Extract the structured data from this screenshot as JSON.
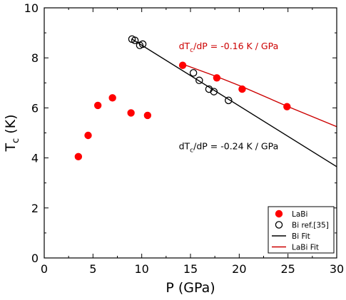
{
  "chart_data": {
    "type": "scatter",
    "xlabel": "P (GPa)",
    "ylabel_main": "T",
    "ylabel_sub": "c",
    "ylabel_unit": " (K)",
    "xlim": [
      0,
      30
    ],
    "ylim": [
      0,
      10
    ],
    "xticks": [
      0,
      5,
      10,
      15,
      20,
      25,
      30
    ],
    "yticks": [
      0,
      2,
      4,
      6,
      8,
      10
    ],
    "grid": false,
    "legend_position": "bottom-right",
    "series": [
      {
        "name": "LaBi",
        "kind": "points",
        "marker": "filled-circle",
        "color": "#ff0000",
        "points": [
          [
            3.5,
            4.05
          ],
          [
            4.5,
            4.9
          ],
          [
            5.5,
            6.1
          ],
          [
            7.0,
            6.4
          ],
          [
            8.9,
            5.8
          ],
          [
            10.6,
            5.7
          ],
          [
            14.2,
            7.7
          ],
          [
            17.7,
            7.2
          ],
          [
            20.3,
            6.75
          ],
          [
            24.9,
            6.05
          ]
        ]
      },
      {
        "name": "Bi ref.[35]",
        "kind": "points",
        "marker": "open-circle",
        "color": "#000000",
        "points": [
          [
            9.0,
            8.75
          ],
          [
            9.3,
            8.7
          ],
          [
            9.8,
            8.5
          ],
          [
            10.1,
            8.55
          ],
          [
            15.3,
            7.4
          ],
          [
            15.9,
            7.1
          ],
          [
            16.9,
            6.75
          ],
          [
            17.4,
            6.65
          ],
          [
            18.9,
            6.3
          ]
        ]
      },
      {
        "name": "Bi Fit",
        "kind": "line",
        "color": "#000000",
        "points": [
          [
            9.0,
            8.75
          ],
          [
            30.0,
            3.65
          ]
        ]
      },
      {
        "name": "LaBi Fit",
        "kind": "line",
        "color": "#cc0000",
        "points": [
          [
            14.2,
            7.75
          ],
          [
            17.7,
            7.25
          ],
          [
            20.3,
            6.85
          ],
          [
            25.0,
            6.05
          ],
          [
            30.0,
            5.25
          ]
        ]
      }
    ],
    "annotations": [
      {
        "prefix": "dT",
        "sub": "c",
        "suffix": "/dP = -0.16 K / GPa",
        "color": "#cc0000",
        "x": 13.8,
        "y": 8.35
      },
      {
        "prefix": "dT",
        "sub": "c",
        "suffix": "/dP = -0.24 K / GPa",
        "color": "#000000",
        "x": 13.8,
        "y": 4.35
      }
    ]
  }
}
